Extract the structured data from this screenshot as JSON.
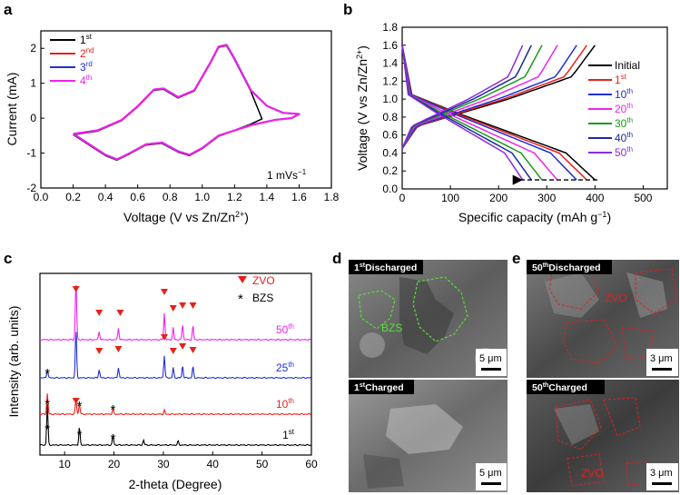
{
  "panels": {
    "a": "a",
    "b": "b",
    "c": "c",
    "d": "d",
    "e": "e"
  },
  "colors": {
    "black": "#000000",
    "red": "#e8201c",
    "blue": "#1f2fd6",
    "magenta": "#ee22ee",
    "green": "#1a9a1a",
    "navy": "#1a2a9a",
    "purple": "#8a2be2"
  },
  "sem": {
    "d_top_label_sup": "st",
    "d_top_label_num": "1",
    "d_top_label_text": "Discharged",
    "d_bot_label_sup": "st",
    "d_bot_label_num": "1",
    "d_bot_label_text": "Charged",
    "e_top_label_sup": "th",
    "e_top_label_num": "50",
    "e_top_label_text": "Discharged",
    "e_bot_label_sup": "th",
    "e_bot_label_num": "50",
    "e_bot_label_text": "Charged",
    "bzs": "BZS",
    "zvo": "ZVO",
    "zvo2": "ZVO",
    "scale_d_top": "5 μm",
    "scale_d_bot": "5 μm",
    "scale_e_top": "3 μm",
    "scale_e_bot": "3 μm"
  },
  "chart_data": [
    {
      "type": "line",
      "xlabel": "Voltage (V vs Zn/Zn",
      "xlabel_sup": "2+",
      "xlabel_end": ")",
      "ylabel": "Current (mA)",
      "xlim": [
        0.0,
        1.8
      ],
      "ylim": [
        -2,
        2.5
      ],
      "xticks": [
        "0.0",
        "0.2",
        "0.4",
        "0.6",
        "0.8",
        "1.0",
        "1.2",
        "1.4",
        "1.6",
        "1.8"
      ],
      "yticks": [
        "-2",
        "-1",
        "0",
        "1",
        "2"
      ],
      "annotation": "1 mVs",
      "annotation_sup": "−1",
      "series": [
        {
          "name": "1",
          "sup": "st",
          "color": "#000000"
        },
        {
          "name": "2",
          "sup": "nd",
          "color": "#e8201c"
        },
        {
          "name": "3",
          "sup": "rd",
          "color": "#1f2fd6"
        },
        {
          "name": "4",
          "sup": "th",
          "color": "#ee22ee"
        }
      ],
      "oxidation_branch": [
        [
          0.2,
          -0.45
        ],
        [
          0.35,
          -0.35
        ],
        [
          0.5,
          -0.05
        ],
        [
          0.6,
          0.35
        ],
        [
          0.7,
          0.82
        ],
        [
          0.76,
          0.85
        ],
        [
          0.85,
          0.6
        ],
        [
          0.95,
          0.8
        ],
        [
          1.05,
          1.6
        ],
        [
          1.1,
          2.05
        ],
        [
          1.15,
          2.1
        ],
        [
          1.2,
          1.7
        ],
        [
          1.3,
          0.8
        ],
        [
          1.4,
          0.35
        ],
        [
          1.5,
          0.15
        ],
        [
          1.6,
          0.12
        ]
      ],
      "reduction_branch": [
        [
          1.6,
          0.12
        ],
        [
          1.55,
          0.0
        ],
        [
          1.45,
          -0.05
        ],
        [
          1.3,
          -0.2
        ],
        [
          1.1,
          -0.5
        ],
        [
          1.0,
          -0.85
        ],
        [
          0.92,
          -1.05
        ],
        [
          0.85,
          -0.95
        ],
        [
          0.75,
          -0.7
        ],
        [
          0.65,
          -0.75
        ],
        [
          0.55,
          -1.0
        ],
        [
          0.47,
          -1.18
        ],
        [
          0.4,
          -1.05
        ],
        [
          0.3,
          -0.75
        ],
        [
          0.2,
          -0.45
        ]
      ],
      "first_cycle_end": [
        1.37,
        0.0
      ]
    },
    {
      "type": "line",
      "xlabel": "Specific capacity (mAh g",
      "xlabel_sup": "−1",
      "xlabel_end": ")",
      "ylabel": "Voltage (V vs Zn/Zn",
      "ylabel_sup": "2+",
      "ylabel_end": ")",
      "xlim": [
        0,
        550
      ],
      "ylim": [
        0.0,
        1.8
      ],
      "xticks": [
        "0",
        "100",
        "200",
        "300",
        "400",
        "500"
      ],
      "yticks": [
        "0.0",
        "0.2",
        "0.4",
        "0.6",
        "0.8",
        "1.0",
        "1.2",
        "1.4",
        "1.6",
        "1.8"
      ],
      "series": [
        {
          "name": "Initial",
          "sup": "",
          "color": "#000000",
          "capacity": 400
        },
        {
          "name": "1",
          "sup": "st",
          "color": "#e8201c",
          "capacity": 383
        },
        {
          "name": "10",
          "sup": "th",
          "color": "#1f2fd6",
          "capacity": 362
        },
        {
          "name": "20",
          "sup": "th",
          "color": "#ee22ee",
          "capacity": 322
        },
        {
          "name": "30",
          "sup": "th",
          "color": "#1a9a1a",
          "capacity": 290
        },
        {
          "name": "40",
          "sup": "th",
          "color": "#1a2a9a",
          "capacity": 268
        },
        {
          "name": "50",
          "sup": "th",
          "color": "#8a2be2",
          "capacity": 250
        }
      ]
    },
    {
      "type": "line",
      "xlabel": "2-theta (Degree)",
      "ylabel": "Intensity (arb. units)",
      "xlim": [
        5,
        60
      ],
      "xticks": [
        "10",
        "20",
        "30",
        "40",
        "50",
        "60"
      ],
      "legend": [
        {
          "label": "ZVO",
          "marker": "triangle-down",
          "color": "#e8201c"
        },
        {
          "label": "BZS",
          "marker": "star",
          "color": "#000000"
        }
      ],
      "series": [
        {
          "name": "1",
          "sup": "st",
          "color": "#000000",
          "peaks": [
            [
              6.5,
              1.0
            ],
            [
              13.0,
              0.45
            ],
            [
              19.8,
              0.25
            ],
            [
              26,
              0.12
            ],
            [
              33,
              0.1
            ]
          ]
        },
        {
          "name": "10",
          "sup": "th",
          "color": "#e8201c",
          "peaks": [
            [
              6.5,
              0.5
            ],
            [
              12.3,
              0.35
            ],
            [
              13.0,
              0.25
            ],
            [
              19.8,
              0.12
            ],
            [
              30.2,
              0.1
            ]
          ]
        },
        {
          "name": "25",
          "sup": "th",
          "color": "#1f2fd6",
          "peaks": [
            [
              6.5,
              0.2
            ],
            [
              12.3,
              1.2
            ],
            [
              17.0,
              0.2
            ],
            [
              20.9,
              0.25
            ],
            [
              30.2,
              0.55
            ],
            [
              32.0,
              0.25
            ],
            [
              33.9,
              0.3
            ],
            [
              36.0,
              0.28
            ]
          ]
        },
        {
          "name": "50",
          "sup": "th",
          "color": "#ee22ee",
          "peaks": [
            [
              12.3,
              1.45
            ],
            [
              17.0,
              0.2
            ],
            [
              20.9,
              0.28
            ],
            [
              30.2,
              0.65
            ],
            [
              32.0,
              0.3
            ],
            [
              33.9,
              0.38
            ],
            [
              36.0,
              0.35
            ]
          ]
        }
      ]
    }
  ]
}
